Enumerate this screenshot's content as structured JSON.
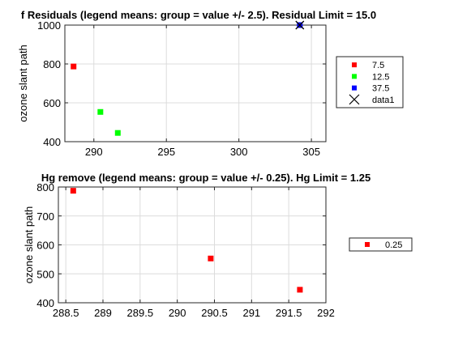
{
  "chart_data": [
    {
      "type": "scatter",
      "title": "f Residuals (legend means: group = value +/- 2.5). Residual Limit = 15.0",
      "xlabel": "",
      "ylabel": "ozone slant path",
      "xlim": [
        288,
        306
      ],
      "ylim": [
        400,
        1000
      ],
      "xticks": [
        290,
        295,
        300,
        305
      ],
      "yticks": [
        400,
        600,
        800,
        1000
      ],
      "grid": true,
      "legend_position": "right",
      "series": [
        {
          "name": "7.5",
          "marker": "square",
          "color": "#ff0000",
          "points": [
            [
              288.6,
              787
            ]
          ]
        },
        {
          "name": "12.5",
          "marker": "square",
          "color": "#00ff00",
          "points": [
            [
              290.45,
              553
            ],
            [
              291.65,
              445
            ]
          ]
        },
        {
          "name": "37.5",
          "marker": "square",
          "color": "#0000ff",
          "points": [
            [
              304.2,
              1000
            ]
          ]
        },
        {
          "name": "data1",
          "marker": "x",
          "color": "#000000",
          "points": [
            [
              304.2,
              1000
            ]
          ]
        }
      ]
    },
    {
      "type": "scatter",
      "title": "Hg remove (legend means: group = value +/- 0.25). Hg Limit = 1.25",
      "xlabel": "",
      "ylabel": "ozone slant path",
      "xlim": [
        288.4,
        292
      ],
      "ylim": [
        400,
        800
      ],
      "xticks": [
        288.5,
        289,
        289.5,
        290,
        290.5,
        291,
        291.5,
        292
      ],
      "yticks": [
        400,
        500,
        600,
        700,
        800
      ],
      "grid": true,
      "legend_position": "right",
      "series": [
        {
          "name": "0.25",
          "marker": "square",
          "color": "#ff0000",
          "points": [
            [
              288.6,
              787
            ],
            [
              290.45,
              553
            ],
            [
              291.65,
              445
            ]
          ]
        }
      ]
    }
  ]
}
